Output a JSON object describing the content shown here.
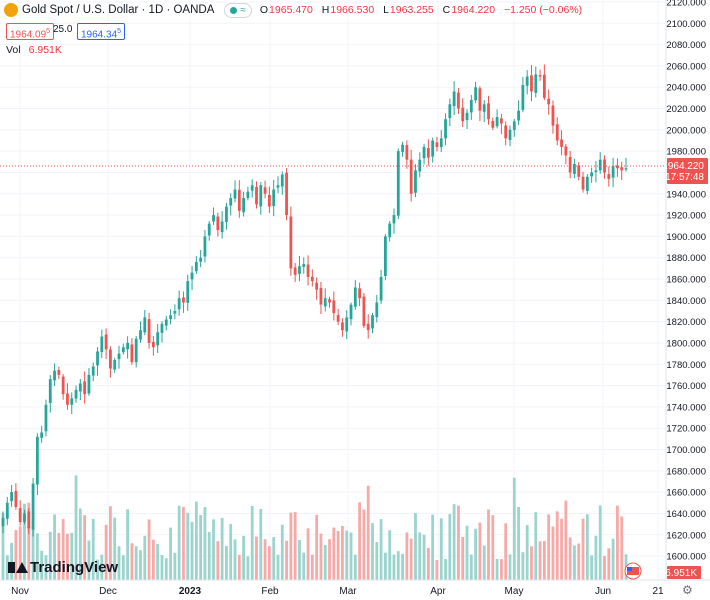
{
  "header": {
    "symbol_title": "Gold Spot / U.S. Dollar · 1D · OANDA",
    "open_label": "O",
    "open": "1965.470",
    "high_label": "H",
    "high": "1966.530",
    "low_label": "L",
    "low": "1963.255",
    "close_label": "C",
    "close": "1964.220",
    "change": "−1.250 (−0.06%)",
    "sell_price": "1964.09",
    "sell_price_sup": "5",
    "spread": "25.0",
    "buy_price": "1964.34",
    "buy_price_sup": "5",
    "pill_icon": "wave-icon"
  },
  "volume": {
    "label": "Vol",
    "value": "6.951K"
  },
  "price_axis": {
    "ticks": [
      "2120.000",
      "2100.000",
      "2080.000",
      "2060.000",
      "2040.000",
      "2020.000",
      "2000.000",
      "1980.000",
      "1960.000",
      "1940.000",
      "1920.000",
      "1900.000",
      "1880.000",
      "1860.000",
      "1840.000",
      "1820.000",
      "1800.000",
      "1780.000",
      "1760.000",
      "1740.000",
      "1720.000",
      "1700.000",
      "1680.000",
      "1660.000",
      "1640.000",
      "1620.000",
      "1600.000"
    ],
    "last_price": "1964.220",
    "countdown": "17:57:48",
    "vol_badge": "6.951K"
  },
  "time_axis": {
    "labels": [
      "Nov",
      "Dec",
      "2023",
      "Feb",
      "Mar",
      "Apr",
      "May",
      "Jun",
      "21"
    ]
  },
  "branding": {
    "name": "TradingView"
  },
  "colors": {
    "up": "#26a69a",
    "down": "#ef5350",
    "vol_up": "#9bd3cd",
    "vol_down": "#f7a9a7",
    "grid": "#f0f3fa"
  },
  "chart_data": {
    "type": "candlestick",
    "ylim": [
      1590,
      2125
    ],
    "price_ticks": [
      2120,
      2100,
      2080,
      2060,
      2040,
      2020,
      2000,
      1980,
      1960,
      1940,
      1920,
      1900,
      1880,
      1860,
      1840,
      1820,
      1800,
      1780,
      1760,
      1740,
      1720,
      1700,
      1680,
      1660,
      1640,
      1620,
      1600
    ],
    "last_price": 1964.22,
    "candles_close": [
      1636,
      1650,
      1660,
      1646,
      1632,
      1640,
      1626,
      1668,
      1712,
      1716,
      1742,
      1766,
      1774,
      1770,
      1752,
      1742,
      1748,
      1756,
      1762,
      1752,
      1770,
      1778,
      1792,
      1806,
      1794,
      1776,
      1784,
      1790,
      1796,
      1800,
      1782,
      1804,
      1812,
      1824,
      1800,
      1796,
      1810,
      1818,
      1822,
      1826,
      1830,
      1842,
      1838,
      1858,
      1866,
      1876,
      1880,
      1900,
      1912,
      1920,
      1906,
      1914,
      1928,
      1936,
      1944,
      1924,
      1936,
      1942,
      1948,
      1930,
      1948,
      1940,
      1928,
      1944,
      1948,
      1958,
      1920,
      1870,
      1864,
      1872,
      1874,
      1862,
      1858,
      1850,
      1836,
      1842,
      1838,
      1828,
      1820,
      1812,
      1824,
      1836,
      1852,
      1842,
      1816,
      1812,
      1826,
      1838,
      1862,
      1900,
      1912,
      1920,
      1980,
      1986,
      1972,
      1940,
      1962,
      1972,
      1984,
      1974,
      1990,
      1984,
      1992,
      2010,
      2024,
      2036,
      2020,
      2008,
      2016,
      2028,
      2040,
      2018,
      2024,
      2010,
      2002,
      2012,
      2006,
      1992,
      2000,
      2008,
      2018,
      2042,
      2050,
      2036,
      2052,
      2050,
      2030,
      2024,
      2004,
      1990,
      1984,
      1976,
      1960,
      1968,
      1956,
      1944,
      1956,
      1960,
      1962,
      1972,
      1960,
      1954,
      1966,
      1964,
      1962,
      1964
    ],
    "volume_label": "Vol",
    "volume_last": "6.951K"
  }
}
